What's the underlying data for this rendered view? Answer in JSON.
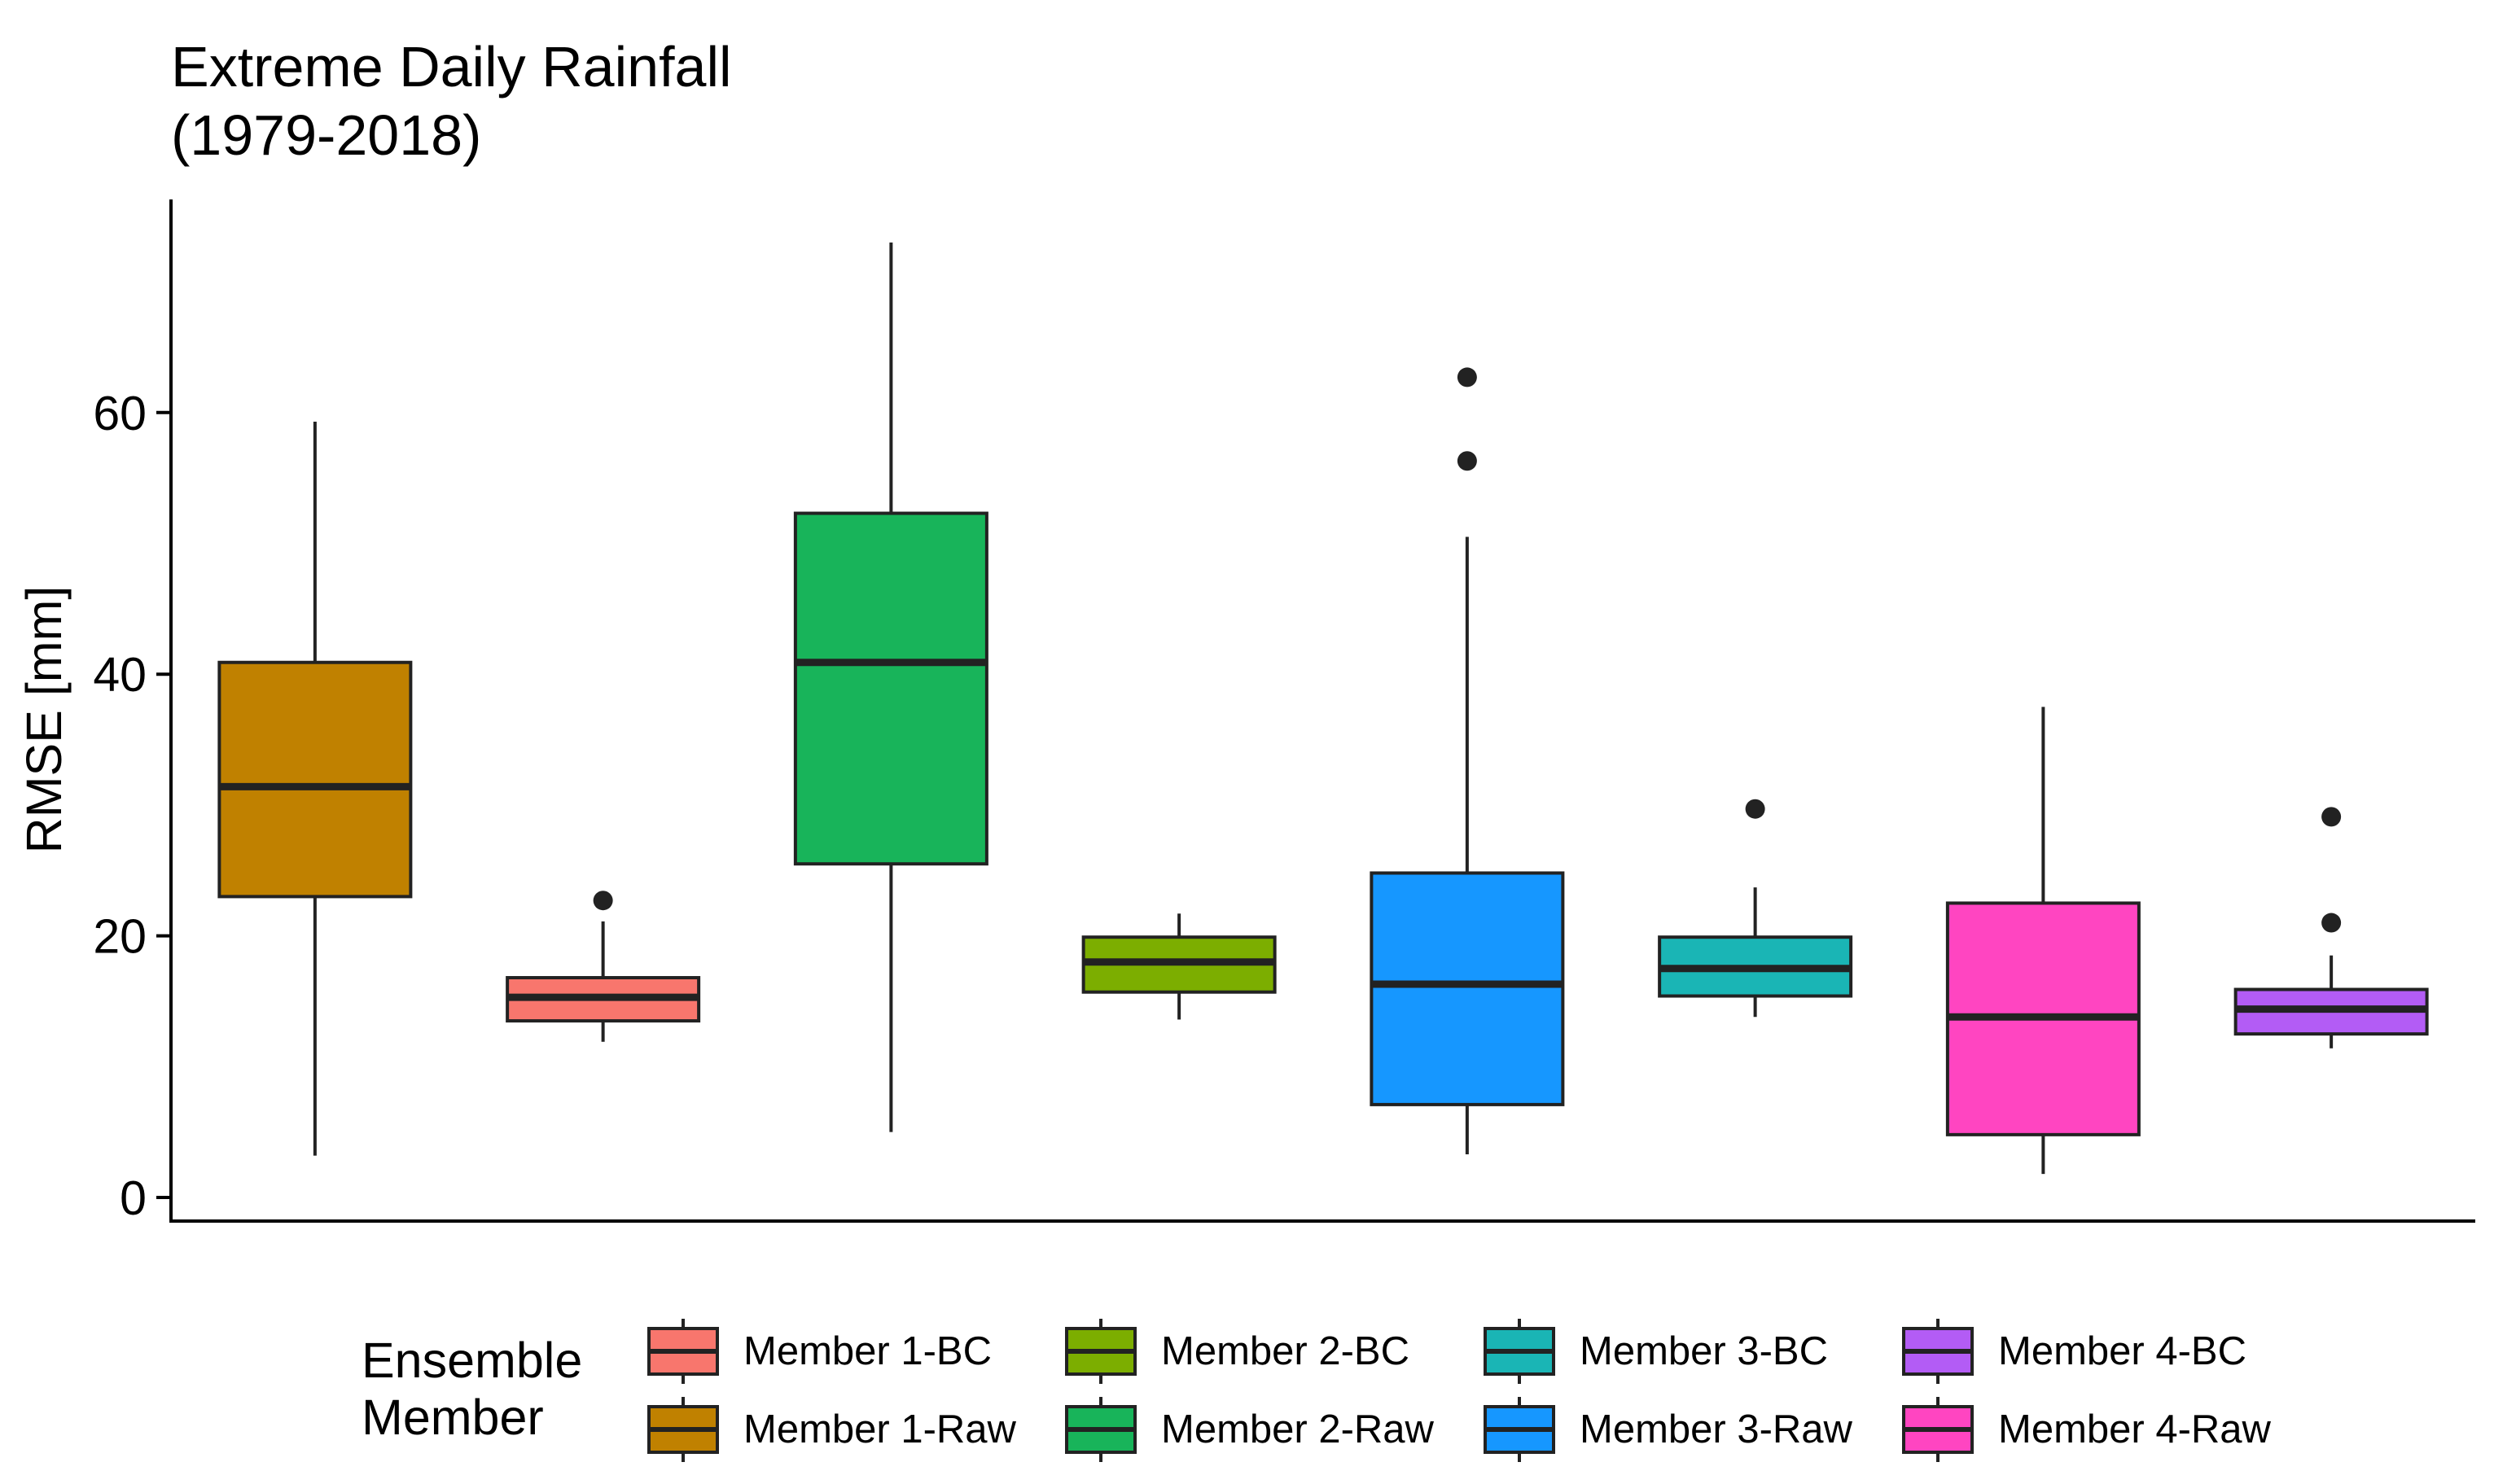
{
  "chart_data": {
    "type": "boxplot",
    "title_lines": [
      "Extreme Daily Rainfall",
      "(1979-2018)"
    ],
    "xlabel": "",
    "ylabel": "RMSE [mm]",
    "ylim": [
      -2,
      76
    ],
    "yticks": [
      0,
      20,
      40,
      60
    ],
    "ytick_labels": [
      "0",
      "20",
      "40",
      "60"
    ],
    "legend": {
      "title_lines": [
        "Ensemble",
        "Member"
      ],
      "placement": "bottom"
    },
    "series": [
      {
        "name": "Member 1-Raw",
        "color": "#C08100",
        "min": 3.2,
        "q1": 23.0,
        "median": 31.4,
        "q3": 40.9,
        "max": 59.3,
        "outliers": []
      },
      {
        "name": "Member 1-BC",
        "color": "#F8766D",
        "min": 11.9,
        "q1": 13.5,
        "median": 15.3,
        "q3": 16.8,
        "max": 21.1,
        "outliers": [
          22.7
        ]
      },
      {
        "name": "Member 2-Raw",
        "color": "#18B45A",
        "min": 5.0,
        "q1": 25.5,
        "median": 40.9,
        "q3": 52.3,
        "max": 73.0,
        "outliers": []
      },
      {
        "name": "Member 2-BC",
        "color": "#7CAE00",
        "min": 13.6,
        "q1": 15.7,
        "median": 18.0,
        "q3": 19.9,
        "max": 21.7,
        "outliers": []
      },
      {
        "name": "Member 3-Raw",
        "color": "#1697FF",
        "min": 3.3,
        "q1": 7.1,
        "median": 16.3,
        "q3": 24.8,
        "max": 50.5,
        "outliers": [
          56.3,
          62.7
        ]
      },
      {
        "name": "Member 3-BC",
        "color": "#1AB5B5",
        "min": 13.8,
        "q1": 15.4,
        "median": 17.5,
        "q3": 19.9,
        "max": 23.7,
        "outliers": [
          29.7
        ]
      },
      {
        "name": "Member 4-Raw",
        "color": "#FF45C1",
        "min": 1.8,
        "q1": 4.8,
        "median": 13.8,
        "q3": 22.5,
        "max": 37.5,
        "outliers": []
      },
      {
        "name": "Member 4-BC",
        "color": "#B35CF5",
        "min": 11.4,
        "q1": 12.5,
        "median": 14.4,
        "q3": 15.9,
        "max": 18.5,
        "outliers": [
          21.0,
          29.1
        ]
      }
    ],
    "legend_order": [
      [
        "Member 1-BC",
        "Member 2-BC",
        "Member 3-BC",
        "Member 4-BC"
      ],
      [
        "Member 1-Raw",
        "Member 2-Raw",
        "Member 3-Raw",
        "Member 4-Raw"
      ]
    ]
  }
}
